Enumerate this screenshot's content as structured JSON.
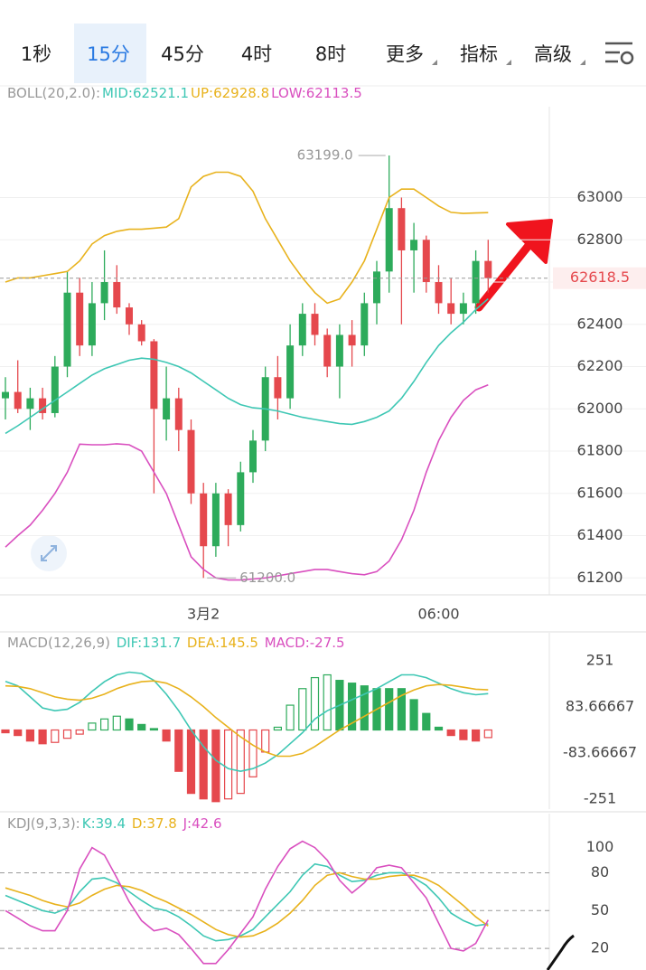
{
  "tabs": {
    "items": [
      "1秒",
      "15分",
      "45分",
      "4时",
      "8时",
      "更多",
      "指标",
      "高级"
    ],
    "selected": 1
  },
  "chart_data": [
    {
      "type": "candlestick",
      "label": "BOLL(20,2.0):",
      "categories": [
        null,
        null,
        null,
        null,
        null,
        null,
        null,
        null,
        null,
        null,
        null,
        null,
        null,
        null,
        null,
        null,
        "3月2",
        null,
        null,
        null,
        null,
        null,
        null,
        null,
        null,
        null,
        null,
        null,
        null,
        null,
        null,
        null,
        null,
        null,
        null,
        "06:00",
        null,
        null,
        null,
        null
      ],
      "open": [
        62050,
        62080,
        62000,
        62050,
        61980,
        62200,
        62550,
        62300,
        62500,
        62600,
        62480,
        62400,
        62320,
        61950,
        62050,
        61900,
        61600,
        61350,
        61600,
        61450,
        61700,
        61850,
        62150,
        62050,
        62300,
        62450,
        62350,
        62200,
        62350,
        62300,
        62500,
        62650,
        62950,
        62750,
        62800,
        62600,
        62500,
        62450,
        62500,
        62700
      ],
      "high": [
        62150,
        62230,
        62100,
        62100,
        62250,
        62650,
        62620,
        62600,
        62750,
        62680,
        62500,
        62420,
        62330,
        62200,
        62100,
        61950,
        61650,
        61650,
        61620,
        61750,
        61900,
        62200,
        62250,
        62400,
        62500,
        62500,
        62380,
        62400,
        62420,
        62550,
        62700,
        63199,
        63000,
        62880,
        62820,
        62680,
        62620,
        62550,
        62750,
        62800
      ],
      "low": [
        61950,
        61980,
        61900,
        61950,
        61960,
        62150,
        62250,
        62250,
        62420,
        62450,
        62350,
        62300,
        61600,
        61850,
        61800,
        61550,
        61200,
        61300,
        61350,
        61420,
        61650,
        61800,
        61950,
        62000,
        62250,
        62300,
        62150,
        62050,
        62200,
        62250,
        62400,
        62550,
        62400,
        62550,
        62550,
        62450,
        62400,
        62400,
        62450,
        62550
      ],
      "close": [
        62080,
        62000,
        62050,
        61980,
        62200,
        62550,
        62300,
        62500,
        62600,
        62480,
        62400,
        62320,
        62000,
        62050,
        61900,
        61600,
        61350,
        61600,
        61450,
        61700,
        61850,
        62150,
        62050,
        62300,
        62450,
        62350,
        62200,
        62350,
        62300,
        62500,
        62650,
        62950,
        62750,
        62800,
        62600,
        62500,
        62450,
        62500,
        62700,
        62618.5
      ],
      "series": [
        {
          "label": "MID:62521.1",
          "color": "#3ec7b4",
          "values": [
            61884,
            61920,
            61960,
            62000,
            62040,
            62080,
            62120,
            62160,
            62190,
            62210,
            62230,
            62240,
            62235,
            62220,
            62200,
            62170,
            62130,
            62090,
            62050,
            62020,
            62005,
            62000,
            61990,
            61975,
            61960,
            61950,
            61940,
            61930,
            61927,
            61940,
            61960,
            61990,
            62050,
            62130,
            62220,
            62300,
            62360,
            62410,
            62470,
            62521.1
          ]
        },
        {
          "label": "UP:62928.8",
          "color": "#e8b21c",
          "values": [
            62600,
            62620,
            62620,
            62630,
            62640,
            62650,
            62700,
            62780,
            62820,
            62840,
            62850,
            62850,
            62855,
            62860,
            62900,
            63050,
            63100,
            63120,
            63120,
            63100,
            63030,
            62900,
            62800,
            62700,
            62620,
            62550,
            62500,
            62520,
            62600,
            62700,
            62850,
            63000,
            63040,
            63040,
            63000,
            62960,
            62930,
            62925,
            62927,
            62928.8
          ]
        },
        {
          "label": "LOW:62113.5",
          "color": "#d94fbf",
          "values": [
            61346,
            61400,
            61450,
            61520,
            61600,
            61700,
            61833,
            61830,
            61830,
            61835,
            61830,
            61800,
            61700,
            61600,
            61450,
            61300,
            61240,
            61200,
            61190,
            61190,
            61195,
            61200,
            61210,
            61220,
            61230,
            61240,
            61240,
            61230,
            61220,
            61215,
            61230,
            61280,
            61380,
            61520,
            61700,
            61850,
            61960,
            62040,
            62090,
            62113.5
          ]
        }
      ],
      "ylim": [
        61120,
        63430
      ],
      "yticks": [
        61200,
        61400,
        61600,
        61800,
        62000,
        62200,
        62400,
        62600,
        62800,
        63000
      ],
      "annotations": [
        {
          "label": "63199.0",
          "value": 63199
        },
        {
          "label": "61200.0",
          "value": 61200
        }
      ],
      "grid": true
    },
    {
      "type": "combo",
      "label": "MACD(12,26,9)",
      "series": [
        {
          "label": "DIF:131.7",
          "color": "#3ec7b4",
          "kind": "line",
          "values": [
            176,
            160,
            120,
            80,
            70,
            75,
            100,
            140,
            175,
            200,
            210,
            205,
            180,
            130,
            70,
            0,
            -60,
            -110,
            -140,
            -150,
            -140,
            -120,
            -90,
            -50,
            -10,
            40,
            70,
            90,
            110,
            130,
            150,
            175,
            200,
            200,
            190,
            170,
            150,
            135,
            128,
            131.7
          ]
        },
        {
          "label": "DEA:145.5",
          "color": "#e8b21c",
          "kind": "line",
          "values": [
            160,
            158,
            150,
            135,
            120,
            112,
            108,
            115,
            130,
            150,
            165,
            175,
            178,
            170,
            150,
            120,
            85,
            45,
            10,
            -25,
            -55,
            -80,
            -95,
            -95,
            -85,
            -60,
            -30,
            0,
            25,
            50,
            75,
            100,
            125,
            145,
            160,
            165,
            162,
            155,
            148,
            145.5
          ]
        },
        {
          "label": "MACD:-27.5",
          "color": "#d94fbf",
          "kind": "bar",
          "values": [
            -10,
            -20,
            -40,
            -50,
            -45,
            -30,
            -15,
            25,
            40,
            50,
            40,
            20,
            5,
            -40,
            -150,
            -230,
            -250,
            -260,
            -250,
            -230,
            -170,
            -80,
            10,
            90,
            150,
            190,
            200,
            180,
            170,
            160,
            150,
            150,
            150,
            110,
            60,
            10,
            -20,
            -35,
            -40,
            -27.5
          ]
        }
      ],
      "ylim": [
        -287,
        287
      ],
      "yticks": [
        251,
        83.66667,
        -83.66667,
        -251
      ]
    },
    {
      "type": "line",
      "label": "KDJ(9,3,3):",
      "series": [
        {
          "label": "K:39.4",
          "color": "#3ec7b4",
          "values": [
            62,
            58,
            54,
            50,
            48,
            52,
            65,
            75,
            76,
            72,
            65,
            58,
            52,
            50,
            45,
            38,
            30,
            26,
            27,
            30,
            35,
            45,
            55,
            65,
            78,
            87,
            85,
            78,
            73,
            74,
            78,
            80,
            80,
            76,
            70,
            60,
            48,
            42,
            38,
            39.4
          ]
        },
        {
          "label": "D:37.8",
          "color": "#e8b21c",
          "values": [
            68,
            65,
            62,
            58,
            55,
            53,
            56,
            62,
            67,
            70,
            69,
            66,
            61,
            57,
            52,
            47,
            41,
            35,
            31,
            29,
            30,
            34,
            40,
            48,
            58,
            70,
            78,
            80,
            77,
            75,
            75,
            77,
            78,
            78,
            75,
            70,
            62,
            54,
            45,
            37.8
          ]
        },
        {
          "label": "J:42.6",
          "color": "#d94fbf",
          "values": [
            50,
            44,
            38,
            34,
            34,
            50,
            83,
            100,
            94,
            76,
            57,
            42,
            34,
            36,
            31,
            20,
            8,
            8,
            19,
            32,
            45,
            67,
            85,
            99,
            105,
            100,
            90,
            74,
            64,
            72,
            84,
            86,
            84,
            72,
            60,
            40,
            20,
            18,
            24,
            42.6
          ]
        }
      ],
      "ylim": [
        0,
        109
      ],
      "yticks": [
        20,
        50,
        80,
        100
      ],
      "hlines": [
        20,
        50,
        80
      ]
    }
  ]
}
